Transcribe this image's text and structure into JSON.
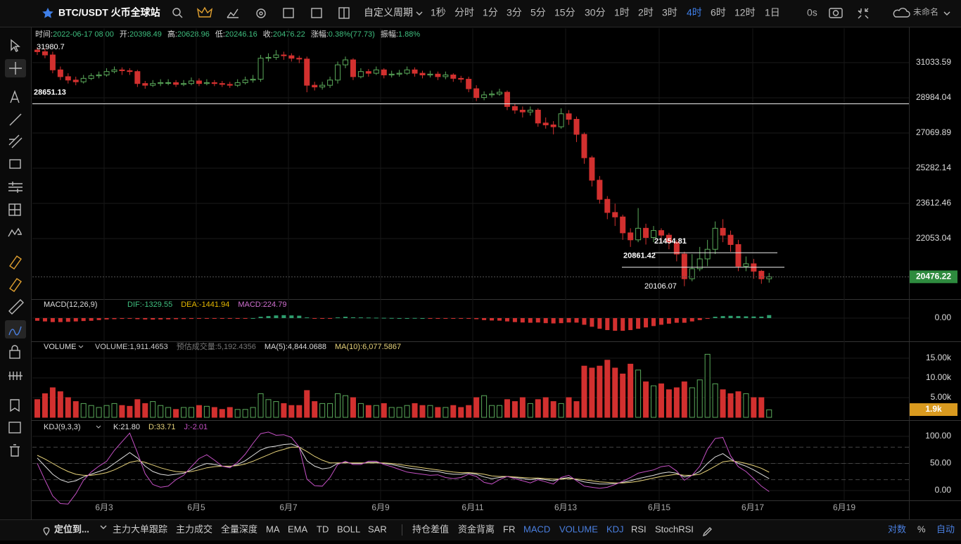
{
  "toolbar": {
    "symbol": "BTC/USDT 火币全球站",
    "custom_period": "自定义周期",
    "periods": [
      {
        "text": "1秒"
      },
      {
        "text": "分时"
      },
      {
        "text": "1分"
      },
      {
        "text": "3分"
      },
      {
        "text": "5分"
      },
      {
        "text": "15分"
      },
      {
        "text": "30分"
      },
      {
        "text": "1时"
      },
      {
        "text": "2时"
      },
      {
        "text": "3时"
      },
      {
        "text": "4时",
        "active": true
      },
      {
        "text": "6时"
      },
      {
        "text": "12时"
      },
      {
        "text": "1日"
      }
    ],
    "timer": "0s",
    "layout_name": "未命名"
  },
  "info": [
    {
      "label": "时间:",
      "value": "2022-06-17 08:00"
    },
    {
      "label": "开:",
      "value": "20398.49"
    },
    {
      "label": "高:",
      "value": "20628.96"
    },
    {
      "label": "低:",
      "value": "20246.16"
    },
    {
      "label": "收:",
      "value": "20476.22"
    },
    {
      "label": "涨幅:",
      "value": "0.38%(77.73)"
    },
    {
      "label": "振幅:",
      "value": "1.88%"
    }
  ],
  "chart_data": [
    {
      "type": "candlestick",
      "log_scale": true,
      "ylim": [
        19636,
        33182
      ],
      "yticks": [
        31033.59,
        28984.04,
        27069.89,
        25282.14,
        23612.46,
        22053.04
      ],
      "grid": true,
      "colors": {
        "up": "#5aa95a",
        "down": "#d2302f",
        "last": "#2e8b3e"
      },
      "open": [
        31800,
        31700,
        31500,
        30600,
        30200,
        30000,
        29900,
        30100,
        30250,
        30300,
        30500,
        30600,
        30550,
        30500,
        29800,
        29700,
        29800,
        29850,
        29850,
        29750,
        29800,
        29950,
        29800,
        29850,
        29800,
        29750,
        29700,
        29850,
        30000,
        30050,
        31300,
        31350,
        31500,
        31450,
        31300,
        31250,
        29700,
        29600,
        29700,
        30000,
        30900,
        31200,
        30200,
        30500,
        30400,
        30600,
        30300,
        30350,
        30400,
        30600,
        30400,
        30300,
        30350,
        30200,
        30300,
        30100,
        30050,
        29500,
        29000,
        29150,
        29200,
        29300,
        28500,
        28300,
        28200,
        28300,
        27600,
        27500,
        27400,
        28100,
        27800,
        27000,
        25800,
        24700,
        23800,
        23200,
        23000,
        22300,
        22000,
        22500,
        22100,
        22400,
        22200,
        21900,
        21400,
        20400,
        20800,
        21200,
        21600,
        22500,
        22200,
        21800,
        20900,
        21000,
        20700,
        20398.49
      ],
      "high": [
        31980.7,
        31900,
        31700,
        30800,
        30400,
        30200,
        30300,
        30400,
        30500,
        30700,
        30800,
        30750,
        30700,
        30600,
        29950,
        30000,
        30050,
        30050,
        30000,
        30000,
        30150,
        30100,
        30050,
        30000,
        29950,
        29900,
        30050,
        30200,
        30300,
        31500,
        31600,
        31800,
        31700,
        31600,
        31450,
        31400,
        29900,
        29900,
        30200,
        31100,
        31400,
        31300,
        30700,
        30650,
        30800,
        30700,
        30550,
        30600,
        30800,
        30750,
        30550,
        30550,
        30500,
        30500,
        30400,
        30250,
        30200,
        29700,
        29350,
        29400,
        29500,
        29400,
        28650,
        28500,
        28500,
        28400,
        27900,
        27700,
        28400,
        28300,
        27950,
        27100,
        25900,
        24900,
        23950,
        23600,
        23100,
        22500,
        23400,
        22700,
        22600,
        22500,
        22300,
        22000,
        21500,
        21400,
        21700,
        22000,
        22800,
        22900,
        22400,
        22000,
        21300,
        21200,
        20750,
        20628.96
      ],
      "low": [
        31500,
        31300,
        30400,
        30000,
        29800,
        29700,
        29800,
        30000,
        30100,
        30200,
        30400,
        30300,
        30300,
        29600,
        29500,
        29600,
        29650,
        29700,
        29600,
        29650,
        29700,
        29650,
        29700,
        29650,
        29600,
        29550,
        29600,
        29750,
        29850,
        29900,
        31100,
        31200,
        31200,
        31100,
        31000,
        29300,
        29400,
        29450,
        29550,
        29800,
        30700,
        30000,
        30100,
        30200,
        30300,
        30100,
        30150,
        30200,
        30300,
        30200,
        30100,
        30150,
        30000,
        30050,
        29900,
        29850,
        29300,
        28800,
        28850,
        29000,
        29100,
        28300,
        28100,
        27900,
        28000,
        27400,
        27300,
        27000,
        27300,
        27500,
        26600,
        25500,
        24400,
        23600,
        22900,
        22600,
        22000,
        21700,
        21900,
        21800,
        21900,
        21900,
        21600,
        21100,
        20106.07,
        20300,
        20700,
        20900,
        21400,
        21900,
        21500,
        20700,
        20700,
        20400,
        20200,
        20246.16
      ],
      "close": [
        31700,
        31500,
        30600,
        30200,
        30000,
        29900,
        30100,
        30250,
        30300,
        30500,
        30600,
        30550,
        30500,
        29800,
        29700,
        29800,
        29850,
        29850,
        29750,
        29800,
        29950,
        29800,
        29850,
        29800,
        29750,
        29700,
        29850,
        30000,
        30050,
        31300,
        31350,
        31500,
        31450,
        31300,
        31250,
        29700,
        29600,
        29700,
        30000,
        30900,
        31200,
        30200,
        30500,
        30400,
        30600,
        30300,
        30350,
        30400,
        30600,
        30400,
        30300,
        30350,
        30200,
        30300,
        30100,
        30050,
        29500,
        29000,
        29150,
        29200,
        29300,
        28500,
        28300,
        28200,
        28300,
        27600,
        27500,
        27400,
        28100,
        27800,
        27000,
        25800,
        24700,
        23800,
        23200,
        23000,
        22300,
        22000,
        22500,
        22100,
        22400,
        22200,
        21900,
        21400,
        20400,
        20800,
        21200,
        21600,
        22500,
        22200,
        21800,
        20900,
        21000,
        20700,
        20398.49,
        20476.22
      ],
      "hlines": [
        28651.13,
        21454.81,
        20861.42
      ]
    },
    {
      "type": "macd",
      "title": "MACD(12,26,9)",
      "ylim": [
        -1690,
        1372
      ],
      "yticks": [
        {
          "value": 0,
          "label": "0.00"
        }
      ],
      "stats": [
        {
          "label": "DIF:",
          "value": "-1329.55",
          "color": "#3fbf7f"
        },
        {
          "label": "DEA:",
          "value": "-1441.94",
          "color": "#e6b800"
        },
        {
          "label": "MACD:",
          "value": "224.79",
          "color": "#d070d0"
        }
      ],
      "colors": {
        "up": "#2e9e6e",
        "down": "#d2302f"
      },
      "values": [
        -200,
        -250,
        -300,
        -300,
        -280,
        -250,
        -220,
        -200,
        -150,
        -100,
        -80,
        -60,
        -50,
        -80,
        -100,
        -110,
        -100,
        -90,
        -80,
        -70,
        -60,
        -50,
        -50,
        -40,
        -40,
        -30,
        -30,
        -20,
        0,
        100,
        150,
        200,
        220,
        200,
        180,
        50,
        -20,
        -50,
        -40,
        50,
        100,
        60,
        50,
        40,
        30,
        20,
        10,
        0,
        0,
        10,
        0,
        -10,
        -10,
        -20,
        -20,
        -30,
        -40,
        -80,
        -150,
        -180,
        -190,
        -250,
        -300,
        -330,
        -350,
        -330,
        -380,
        -400,
        -380,
        -330,
        -340,
        -500,
        -650,
        -800,
        -900,
        -950,
        -950,
        -900,
        -800,
        -700,
        -600,
        -500,
        -420,
        -350,
        -350,
        -250,
        -150,
        -50,
        100,
        150,
        170,
        150,
        130,
        120,
        110,
        224.79
      ]
    },
    {
      "type": "volume",
      "title": "VOLUME",
      "ylim": [
        0,
        19107
      ],
      "yticks": [
        {
          "value": 15000,
          "label": "15.00k"
        },
        {
          "value": 10000,
          "label": "10.00k"
        },
        {
          "value": 5000,
          "label": "5.00k"
        }
      ],
      "stats": [
        {
          "label": "VOLUME:",
          "value": "1,911.4653",
          "color": "#cccccc"
        },
        {
          "label": "预估成交量:",
          "value": "5,192.4356",
          "color": "#777777"
        },
        {
          "label": "MA(5):",
          "value": "4,844.0688",
          "color": "#dddddd"
        },
        {
          "label": "MA(10):",
          "value": "6,077.5867",
          "color": "#e6d27a"
        }
      ],
      "last_label": "1.9k",
      "last_color": "#d99a1f",
      "values": [
        4500,
        6000,
        7500,
        6500,
        5000,
        4000,
        3500,
        3000,
        2500,
        3000,
        3500,
        3000,
        2800,
        4500,
        3500,
        4000,
        3000,
        2500,
        2000,
        2500,
        2500,
        3000,
        2800,
        2500,
        2000,
        2500,
        2000,
        2000,
        2500,
        6000,
        4500,
        4000,
        3500,
        3000,
        3000,
        6800,
        4000,
        3500,
        3500,
        6000,
        5500,
        5000,
        3500,
        3000,
        3000,
        3500,
        2500,
        2500,
        3000,
        3500,
        3000,
        3000,
        2500,
        2500,
        3000,
        2500,
        3000,
        5000,
        5500,
        3000,
        3000,
        4500,
        4000,
        5000,
        3500,
        4500,
        5000,
        4000,
        3500,
        5000,
        4000,
        13000,
        12500,
        13000,
        14500,
        12500,
        11000,
        13500,
        12000,
        9000,
        8000,
        8500,
        7000,
        7500,
        9000,
        7500,
        9500,
        16000,
        8500,
        7000,
        6000,
        6500,
        6000,
        5000,
        5000,
        1911.4653
      ]
    },
    {
      "type": "kdj",
      "title": "KDJ(9,3,3)",
      "ylim": [
        -16.9,
        128.6
      ],
      "yticks": [
        {
          "value": 100,
          "label": "100.00"
        },
        {
          "value": 50,
          "label": "50.00"
        },
        {
          "value": 0,
          "label": "0.00"
        }
      ],
      "levels": [
        80,
        50,
        20
      ],
      "series": [
        {
          "name": "K:",
          "value_label": "21.80",
          "color": "#e0e0e0",
          "values": [
            60,
            45,
            30,
            20,
            15,
            18,
            25,
            30,
            35,
            40,
            50,
            60,
            70,
            60,
            45,
            35,
            30,
            28,
            30,
            32,
            38,
            45,
            50,
            48,
            45,
            44,
            48,
            55,
            65,
            75,
            80,
            82,
            85,
            86,
            80,
            55,
            45,
            40,
            42,
            50,
            52,
            50,
            50,
            52,
            52,
            50,
            48,
            45,
            42,
            40,
            38,
            36,
            35,
            32,
            30,
            30,
            32,
            30,
            25,
            22,
            24,
            26,
            24,
            22,
            20,
            22,
            20,
            18,
            22,
            24,
            20,
            16,
            14,
            12,
            12,
            13,
            15,
            18,
            22,
            25,
            28,
            32,
            34,
            32,
            25,
            28,
            35,
            50,
            62,
            68,
            58,
            50,
            45,
            38,
            30,
            21.8
          ]
        },
        {
          "name": "D:",
          "value_label": "33.71",
          "color": "#e6d27a",
          "values": [
            65,
            58,
            50,
            42,
            35,
            30,
            28,
            28,
            30,
            33,
            38,
            45,
            52,
            55,
            52,
            47,
            42,
            38,
            35,
            34,
            35,
            38,
            42,
            44,
            45,
            45,
            46,
            49,
            54,
            60,
            66,
            72,
            76,
            80,
            80,
            72,
            63,
            56,
            51,
            51,
            51,
            51,
            51,
            51,
            51,
            51,
            50,
            48,
            46,
            44,
            42,
            40,
            38,
            36,
            34,
            33,
            33,
            32,
            30,
            27,
            26,
            26,
            25,
            24,
            23,
            23,
            22,
            21,
            21,
            22,
            21,
            20,
            18,
            16,
            15,
            14,
            14,
            15,
            17,
            20,
            23,
            26,
            28,
            30,
            28,
            28,
            30,
            37,
            45,
            53,
            55,
            53,
            50,
            46,
            41,
            33.71
          ]
        },
        {
          "name": "J:",
          "value_label": "-2.01",
          "color": "#c450c4",
          "values": [
            50,
            19,
            -10,
            -24,
            -25,
            -6,
            19,
            34,
            45,
            54,
            74,
            90,
            106,
            70,
            31,
            11,
            6,
            8,
            20,
            28,
            44,
            59,
            66,
            56,
            45,
            42,
            52,
            67,
            87,
            105,
            108,
            102,
            103,
            98,
            80,
            21,
            9,
            8,
            24,
            48,
            54,
            48,
            48,
            54,
            54,
            48,
            44,
            39,
            34,
            32,
            30,
            28,
            29,
            24,
            22,
            24,
            30,
            26,
            15,
            12,
            20,
            26,
            22,
            18,
            14,
            20,
            16,
            12,
            24,
            28,
            18,
            8,
            6,
            4,
            6,
            11,
            17,
            24,
            32,
            35,
            38,
            44,
            46,
            36,
            19,
            28,
            45,
            76,
            96,
            98,
            64,
            44,
            35,
            22,
            8,
            -2.01
          ]
        }
      ]
    }
  ],
  "x_axis": {
    "labels": [
      "6月3",
      "6月5",
      "6月7",
      "6月9",
      "6月11",
      "6月13",
      "6月15",
      "6月17",
      "6月19"
    ]
  },
  "bottom_bar": {
    "locate": "定位到...",
    "items": [
      {
        "text": "主力大单跟踪"
      },
      {
        "text": "主力成交"
      },
      {
        "text": "全量深度"
      },
      {
        "text": "MA"
      },
      {
        "text": "EMA"
      },
      {
        "text": "TD"
      },
      {
        "text": "BOLL"
      },
      {
        "text": "SAR"
      },
      {
        "text": "持仓差值"
      },
      {
        "text": "资金背离"
      },
      {
        "text": "FR"
      },
      {
        "text": "MACD",
        "active": true
      },
      {
        "text": "VOLUME",
        "active": true
      },
      {
        "text": "KDJ",
        "active": true
      },
      {
        "text": "RSI"
      },
      {
        "text": "StochRSI"
      }
    ],
    "right": [
      {
        "text": "对数",
        "active": true
      },
      {
        "text": "%"
      },
      {
        "text": "自动",
        "active": true
      }
    ]
  }
}
